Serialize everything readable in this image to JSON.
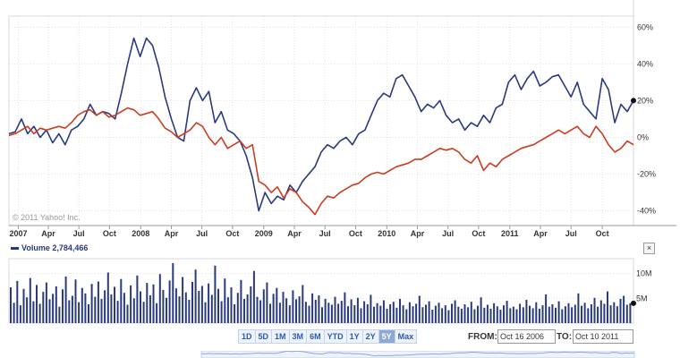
{
  "copyright": "© 2011 Yahoo! Inc.",
  "colors": {
    "series_blue": "#2a3a7f",
    "series_red": "#cc3d1f",
    "grid": "#e2e2e2",
    "accent": "#2a5bb3"
  },
  "volume_header": {
    "label": "Volume",
    "value": "2,784,466"
  },
  "close_label": "×",
  "range_buttons": [
    "1D",
    "5D",
    "1M",
    "3M",
    "6M",
    "YTD",
    "1Y",
    "2Y",
    "5Y",
    "Max"
  ],
  "active_range": "5Y",
  "date_range": {
    "from_label": "FROM:",
    "from_value": "Oct 16 2006",
    "to_label": "TO:",
    "to_value": "Oct 10 2011"
  },
  "chart_data": [
    {
      "type": "line",
      "y_tick_labels": [
        "60%",
        "40%",
        "20%",
        "0%",
        "-20%",
        "-40%"
      ],
      "y_ticks": [
        60,
        40,
        20,
        0,
        -20,
        -40
      ],
      "ylim": [
        -48,
        66
      ],
      "xlim": [
        0,
        1
      ],
      "x_tick_labels": [
        {
          "label": "2007",
          "x": 0.015
        },
        {
          "label": "Apr",
          "x": 0.063
        },
        {
          "label": "Jul",
          "x": 0.112
        },
        {
          "label": "Oct",
          "x": 0.161
        },
        {
          "label": "2008",
          "x": 0.211
        },
        {
          "label": "Apr",
          "x": 0.26
        },
        {
          "label": "Jul",
          "x": 0.309
        },
        {
          "label": "Oct",
          "x": 0.358
        },
        {
          "label": "2009",
          "x": 0.408
        },
        {
          "label": "Apr",
          "x": 0.457
        },
        {
          "label": "Jul",
          "x": 0.506
        },
        {
          "label": "Oct",
          "x": 0.555
        },
        {
          "label": "2010",
          "x": 0.605
        },
        {
          "label": "Apr",
          "x": 0.654
        },
        {
          "label": "Jul",
          "x": 0.703
        },
        {
          "label": "Oct",
          "x": 0.752
        },
        {
          "label": "2011",
          "x": 0.802
        },
        {
          "label": "Apr",
          "x": 0.851
        },
        {
          "label": "Jul",
          "x": 0.9
        },
        {
          "label": "Oct",
          "x": 0.95
        }
      ],
      "series": [
        {
          "color": "#2a3a7f",
          "points": [
            [
              0.0,
              2
            ],
            [
              0.01,
              3
            ],
            [
              0.02,
              10
            ],
            [
              0.03,
              2
            ],
            [
              0.04,
              6
            ],
            [
              0.05,
              0
            ],
            [
              0.06,
              4
            ],
            [
              0.07,
              -3
            ],
            [
              0.08,
              2
            ],
            [
              0.09,
              -4
            ],
            [
              0.1,
              4
            ],
            [
              0.11,
              6
            ],
            [
              0.12,
              10
            ],
            [
              0.13,
              18
            ],
            [
              0.14,
              12
            ],
            [
              0.15,
              14
            ],
            [
              0.16,
              13
            ],
            [
              0.17,
              10
            ],
            [
              0.18,
              24
            ],
            [
              0.19,
              40
            ],
            [
              0.2,
              54
            ],
            [
              0.21,
              44
            ],
            [
              0.22,
              54
            ],
            [
              0.23,
              50
            ],
            [
              0.24,
              38
            ],
            [
              0.25,
              22
            ],
            [
              0.26,
              10
            ],
            [
              0.27,
              0
            ],
            [
              0.28,
              -2
            ],
            [
              0.29,
              20
            ],
            [
              0.3,
              27
            ],
            [
              0.31,
              20
            ],
            [
              0.32,
              25
            ],
            [
              0.33,
              8
            ],
            [
              0.34,
              14
            ],
            [
              0.35,
              4
            ],
            [
              0.36,
              2
            ],
            [
              0.37,
              -2
            ],
            [
              0.38,
              -10
            ],
            [
              0.39,
              -22
            ],
            [
              0.4,
              -40
            ],
            [
              0.41,
              -30
            ],
            [
              0.42,
              -36
            ],
            [
              0.43,
              -32
            ],
            [
              0.44,
              -34
            ],
            [
              0.45,
              -26
            ],
            [
              0.46,
              -30
            ],
            [
              0.47,
              -24
            ],
            [
              0.48,
              -20
            ],
            [
              0.49,
              -16
            ],
            [
              0.5,
              -8
            ],
            [
              0.51,
              -4
            ],
            [
              0.52,
              -6
            ],
            [
              0.53,
              -2
            ],
            [
              0.54,
              0
            ],
            [
              0.55,
              -4
            ],
            [
              0.56,
              2
            ],
            [
              0.57,
              4
            ],
            [
              0.58,
              12
            ],
            [
              0.59,
              20
            ],
            [
              0.6,
              24
            ],
            [
              0.61,
              22
            ],
            [
              0.62,
              32
            ],
            [
              0.63,
              34
            ],
            [
              0.64,
              28
            ],
            [
              0.65,
              22
            ],
            [
              0.66,
              14
            ],
            [
              0.67,
              18
            ],
            [
              0.68,
              16
            ],
            [
              0.69,
              20
            ],
            [
              0.7,
              12
            ],
            [
              0.71,
              8
            ],
            [
              0.72,
              10
            ],
            [
              0.73,
              4
            ],
            [
              0.74,
              8
            ],
            [
              0.75,
              6
            ],
            [
              0.76,
              12
            ],
            [
              0.77,
              8
            ],
            [
              0.78,
              16
            ],
            [
              0.79,
              18
            ],
            [
              0.8,
              30
            ],
            [
              0.81,
              34
            ],
            [
              0.82,
              26
            ],
            [
              0.83,
              32
            ],
            [
              0.84,
              36
            ],
            [
              0.85,
              28
            ],
            [
              0.86,
              30
            ],
            [
              0.87,
              33
            ],
            [
              0.88,
              34
            ],
            [
              0.89,
              28
            ],
            [
              0.9,
              22
            ],
            [
              0.91,
              30
            ],
            [
              0.92,
              18
            ],
            [
              0.93,
              14
            ],
            [
              0.94,
              10
            ],
            [
              0.95,
              32
            ],
            [
              0.96,
              26
            ],
            [
              0.97,
              8
            ],
            [
              0.98,
              18
            ],
            [
              0.99,
              14
            ],
            [
              1.0,
              20
            ]
          ]
        },
        {
          "color": "#cc3d1f",
          "points": [
            [
              0.0,
              1
            ],
            [
              0.01,
              2
            ],
            [
              0.02,
              4
            ],
            [
              0.03,
              6
            ],
            [
              0.04,
              2
            ],
            [
              0.05,
              5
            ],
            [
              0.06,
              4
            ],
            [
              0.07,
              5
            ],
            [
              0.08,
              6
            ],
            [
              0.09,
              5
            ],
            [
              0.1,
              8
            ],
            [
              0.11,
              12
            ],
            [
              0.12,
              14
            ],
            [
              0.13,
              15
            ],
            [
              0.14,
              12
            ],
            [
              0.15,
              14
            ],
            [
              0.16,
              11
            ],
            [
              0.17,
              12
            ],
            [
              0.18,
              14
            ],
            [
              0.19,
              16
            ],
            [
              0.2,
              15
            ],
            [
              0.21,
              12
            ],
            [
              0.22,
              13
            ],
            [
              0.23,
              14
            ],
            [
              0.24,
              10
            ],
            [
              0.25,
              5
            ],
            [
              0.26,
              3
            ],
            [
              0.27,
              0
            ],
            [
              0.28,
              2
            ],
            [
              0.29,
              4
            ],
            [
              0.3,
              8
            ],
            [
              0.31,
              6
            ],
            [
              0.32,
              0
            ],
            [
              0.33,
              -4
            ],
            [
              0.34,
              0
            ],
            [
              0.35,
              -6
            ],
            [
              0.36,
              -4
            ],
            [
              0.37,
              -2
            ],
            [
              0.38,
              -6
            ],
            [
              0.39,
              -4
            ],
            [
              0.4,
              -24
            ],
            [
              0.41,
              -26
            ],
            [
              0.42,
              -30
            ],
            [
              0.43,
              -27
            ],
            [
              0.44,
              -33
            ],
            [
              0.45,
              -28
            ],
            [
              0.46,
              -30
            ],
            [
              0.47,
              -35
            ],
            [
              0.48,
              -38
            ],
            [
              0.49,
              -42
            ],
            [
              0.5,
              -36
            ],
            [
              0.51,
              -32
            ],
            [
              0.52,
              -33
            ],
            [
              0.53,
              -30
            ],
            [
              0.54,
              -28
            ],
            [
              0.55,
              -26
            ],
            [
              0.56,
              -25
            ],
            [
              0.57,
              -22
            ],
            [
              0.58,
              -20
            ],
            [
              0.59,
              -19
            ],
            [
              0.6,
              -20
            ],
            [
              0.61,
              -18
            ],
            [
              0.62,
              -16
            ],
            [
              0.63,
              -15
            ],
            [
              0.64,
              -14
            ],
            [
              0.65,
              -12
            ],
            [
              0.66,
              -12
            ],
            [
              0.67,
              -10
            ],
            [
              0.68,
              -8
            ],
            [
              0.69,
              -6
            ],
            [
              0.7,
              -7
            ],
            [
              0.71,
              -6
            ],
            [
              0.72,
              -8
            ],
            [
              0.73,
              -12
            ],
            [
              0.74,
              -14
            ],
            [
              0.75,
              -10
            ],
            [
              0.76,
              -18
            ],
            [
              0.77,
              -14
            ],
            [
              0.78,
              -16
            ],
            [
              0.79,
              -12
            ],
            [
              0.8,
              -10
            ],
            [
              0.81,
              -8
            ],
            [
              0.82,
              -6
            ],
            [
              0.83,
              -5
            ],
            [
              0.84,
              -4
            ],
            [
              0.85,
              -2
            ],
            [
              0.86,
              0
            ],
            [
              0.87,
              2
            ],
            [
              0.88,
              4
            ],
            [
              0.89,
              2
            ],
            [
              0.9,
              4
            ],
            [
              0.91,
              6
            ],
            [
              0.92,
              2
            ],
            [
              0.93,
              0
            ],
            [
              0.94,
              6
            ],
            [
              0.95,
              2
            ],
            [
              0.96,
              -4
            ],
            [
              0.97,
              -8
            ],
            [
              0.98,
              -6
            ],
            [
              0.99,
              -2
            ],
            [
              1.0,
              -4
            ]
          ]
        }
      ]
    },
    {
      "type": "bar",
      "y_tick_labels": [
        "10M",
        "5M"
      ],
      "y_ticks": [
        10,
        5
      ],
      "ylim": [
        0,
        13
      ],
      "volume_millions": [
        7.2,
        4.1,
        8.5,
        3.6,
        6.9,
        5.2,
        9.1,
        4.4,
        7.7,
        3.9,
        6.3,
        8.2,
        4.8,
        5.9,
        7.4,
        3.3,
        6.8,
        9.4,
        4.6,
        5.5,
        8.8,
        4.2,
        7.1,
        6.0,
        3.8,
        7.9,
        5.3,
        8.4,
        4.9,
        6.6,
        10.2,
        5.8,
        7.3,
        4.5,
        8.9,
        6.1,
        3.7,
        7.6,
        5.0,
        9.6,
        6.4,
        4.3,
        8.1,
        5.6,
        7.8,
        4.0,
        9.9,
        6.7,
        5.1,
        8.6,
        12.1,
        7.0,
        5.4,
        9.3,
        6.2,
        4.7,
        8.3,
        10.8,
        6.5,
        7.5,
        4.2,
        8.0,
        5.7,
        11.6,
        6.9,
        4.4,
        9.0,
        5.2,
        7.2,
        3.8,
        6.1,
        8.7,
        4.9,
        5.8,
        7.4,
        10.5,
        5.3,
        4.6,
        6.8,
        8.2,
        3.9,
        5.9,
        7.1,
        4.1,
        6.3,
        5.0,
        3.6,
        6.6,
        4.8,
        5.4,
        7.7,
        4.3,
        3.5,
        6.0,
        4.7,
        5.6,
        3.2,
        4.9,
        4.1,
        3.7,
        5.3,
        3.9,
        4.5,
        6.2,
        3.4,
        4.8,
        3.6,
        5.1,
        3.0,
        4.4,
        3.8,
        5.7,
        3.3,
        4.0,
        3.5,
        4.6,
        2.9,
        3.8,
        4.3,
        3.1,
        4.9,
        3.6,
        2.8,
        4.2,
        3.4,
        3.9,
        5.5,
        3.2,
        3.7,
        4.4,
        2.7,
        3.5,
        4.1,
        3.0,
        3.6,
        2.6,
        3.9,
        4.6,
        3.3,
        2.9,
        3.8,
        3.2,
        4.3,
        2.8,
        3.5,
        5.2,
        3.1,
        3.7,
        2.9,
        4.0,
        3.4,
        2.7,
        3.6,
        4.5,
        3.0,
        3.3,
        2.8,
        3.9,
        3.2,
        4.7,
        3.5,
        3.0,
        4.2,
        2.9,
        3.6,
        5.8,
        3.3,
        3.8,
        3.1,
        4.4,
        2.8,
        3.4,
        4.0,
        3.2,
        3.7,
        6.0,
        3.5,
        4.1,
        3.0,
        3.8,
        5.1,
        3.3,
        4.6,
        3.9,
        6.4,
        3.6,
        4.2,
        3.4,
        4.9,
        5.5,
        3.7,
        4.0
      ]
    }
  ]
}
